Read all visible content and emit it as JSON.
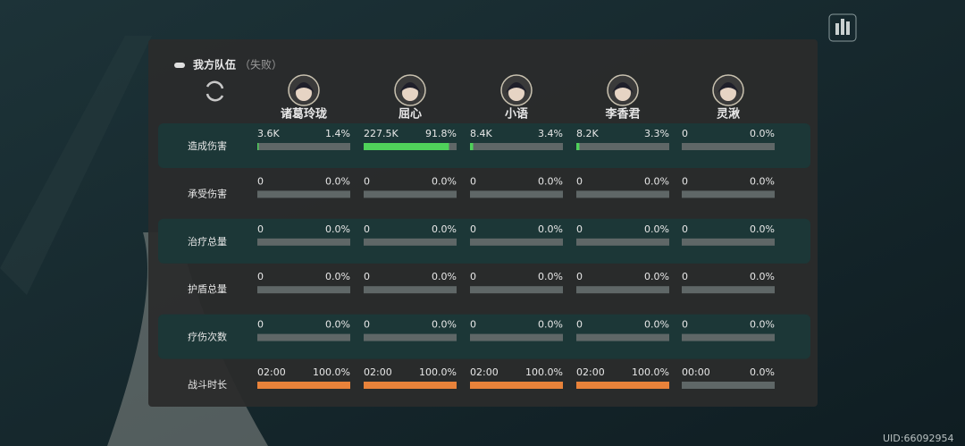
{
  "header": {
    "title": "我方队伍",
    "status": "（失败）"
  },
  "characters": [
    "诸葛玲珑",
    "屈心",
    "小语",
    "李香君",
    "灵湫"
  ],
  "table": {
    "rows": [
      {
        "label": "造成伤害",
        "bar_color": "#4fd15a",
        "cells": [
          {
            "amount": "3.6K",
            "share": {
              "value": 1.4,
              "label": "1.4%"
            }
          },
          {
            "amount": "227.5K",
            "share": {
              "value": 91.8,
              "label": "91.8%"
            }
          },
          {
            "amount": "8.4K",
            "share": {
              "value": 3.4,
              "label": "3.4%"
            }
          },
          {
            "amount": "8.2K",
            "share": {
              "value": 3.3,
              "label": "3.3%"
            }
          },
          {
            "amount": "0",
            "share": {
              "value": 0,
              "label": "0.0%"
            }
          }
        ]
      },
      {
        "label": "承受伤害",
        "bar_color": "#4fd15a",
        "cells": [
          {
            "amount": "0",
            "share": {
              "value": 0,
              "label": "0.0%"
            }
          },
          {
            "amount": "0",
            "share": {
              "value": 0,
              "label": "0.0%"
            }
          },
          {
            "amount": "0",
            "share": {
              "value": 0,
              "label": "0.0%"
            }
          },
          {
            "amount": "0",
            "share": {
              "value": 0,
              "label": "0.0%"
            }
          },
          {
            "amount": "0",
            "share": {
              "value": 0,
              "label": "0.0%"
            }
          }
        ]
      },
      {
        "label": "治疗总量",
        "bar_color": "#4fd15a",
        "cells": [
          {
            "amount": "0",
            "share": {
              "value": 0,
              "label": "0.0%"
            }
          },
          {
            "amount": "0",
            "share": {
              "value": 0,
              "label": "0.0%"
            }
          },
          {
            "amount": "0",
            "share": {
              "value": 0,
              "label": "0.0%"
            }
          },
          {
            "amount": "0",
            "share": {
              "value": 0,
              "label": "0.0%"
            }
          },
          {
            "amount": "0",
            "share": {
              "value": 0,
              "label": "0.0%"
            }
          }
        ]
      },
      {
        "label": "护盾总量",
        "bar_color": "#4fd15a",
        "cells": [
          {
            "amount": "0",
            "share": {
              "value": 0,
              "label": "0.0%"
            }
          },
          {
            "amount": "0",
            "share": {
              "value": 0,
              "label": "0.0%"
            }
          },
          {
            "amount": "0",
            "share": {
              "value": 0,
              "label": "0.0%"
            }
          },
          {
            "amount": "0",
            "share": {
              "value": 0,
              "label": "0.0%"
            }
          },
          {
            "amount": "0",
            "share": {
              "value": 0,
              "label": "0.0%"
            }
          }
        ]
      },
      {
        "label": "疗伤次数",
        "bar_color": "#4fd15a",
        "cells": [
          {
            "amount": "0",
            "share": {
              "value": 0,
              "label": "0.0%"
            }
          },
          {
            "amount": "0",
            "share": {
              "value": 0,
              "label": "0.0%"
            }
          },
          {
            "amount": "0",
            "share": {
              "value": 0,
              "label": "0.0%"
            }
          },
          {
            "amount": "0",
            "share": {
              "value": 0,
              "label": "0.0%"
            }
          },
          {
            "amount": "0",
            "share": {
              "value": 0,
              "label": "0.0%"
            }
          }
        ]
      },
      {
        "label": "战斗时长",
        "bar_color": "#e8823a",
        "cells": [
          {
            "amount": "02:00",
            "share": {
              "value": 100,
              "label": "100.0%"
            }
          },
          {
            "amount": "02:00",
            "share": {
              "value": 100,
              "label": "100.0%"
            }
          },
          {
            "amount": "02:00",
            "share": {
              "value": 100,
              "label": "100.0%"
            }
          },
          {
            "amount": "02:00",
            "share": {
              "value": 100,
              "label": "100.0%"
            }
          },
          {
            "amount": "00:00",
            "share": {
              "value": 0,
              "label": "0.0%"
            }
          }
        ]
      }
    ]
  },
  "uid": "UID:66092954"
}
